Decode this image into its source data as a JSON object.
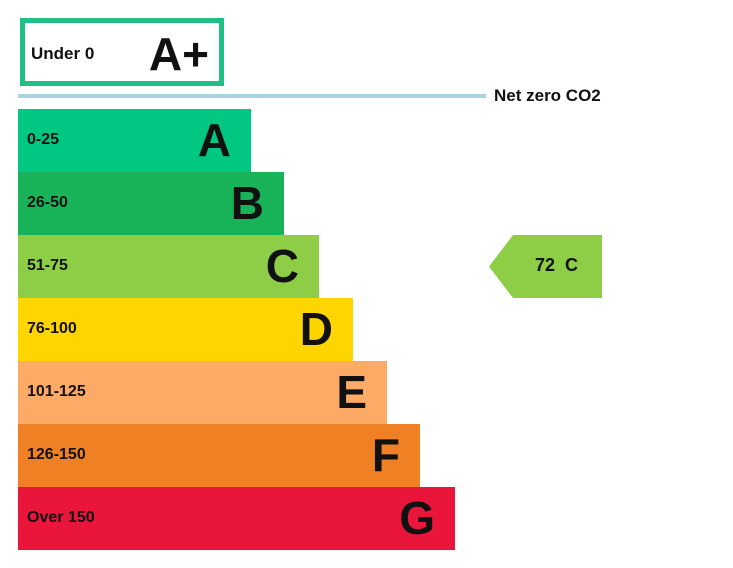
{
  "chart_data": {
    "type": "bar",
    "title": "",
    "top_band": {
      "range": "Under 0",
      "letter": "A+",
      "color": "#1fbf85"
    },
    "reference_line": {
      "label": "Net zero CO2",
      "color": "#a9d3e3"
    },
    "bands": [
      {
        "range": "0-25",
        "letter": "A",
        "color": "#00c781"
      },
      {
        "range": "26-50",
        "letter": "B",
        "color": "#19b459"
      },
      {
        "range": "51-75",
        "letter": "C",
        "color": "#8dce46"
      },
      {
        "range": "76-100",
        "letter": "D",
        "color": "#ffd500"
      },
      {
        "range": "101-125",
        "letter": "E",
        "color": "#fcaa65"
      },
      {
        "range": "126-150",
        "letter": "F",
        "color": "#ef8023"
      },
      {
        "range": "Over 150",
        "letter": "G",
        "color": "#e9153b"
      }
    ],
    "current": {
      "value": 72,
      "letter": "C",
      "label": "72  C",
      "color": "#8dce46"
    }
  }
}
